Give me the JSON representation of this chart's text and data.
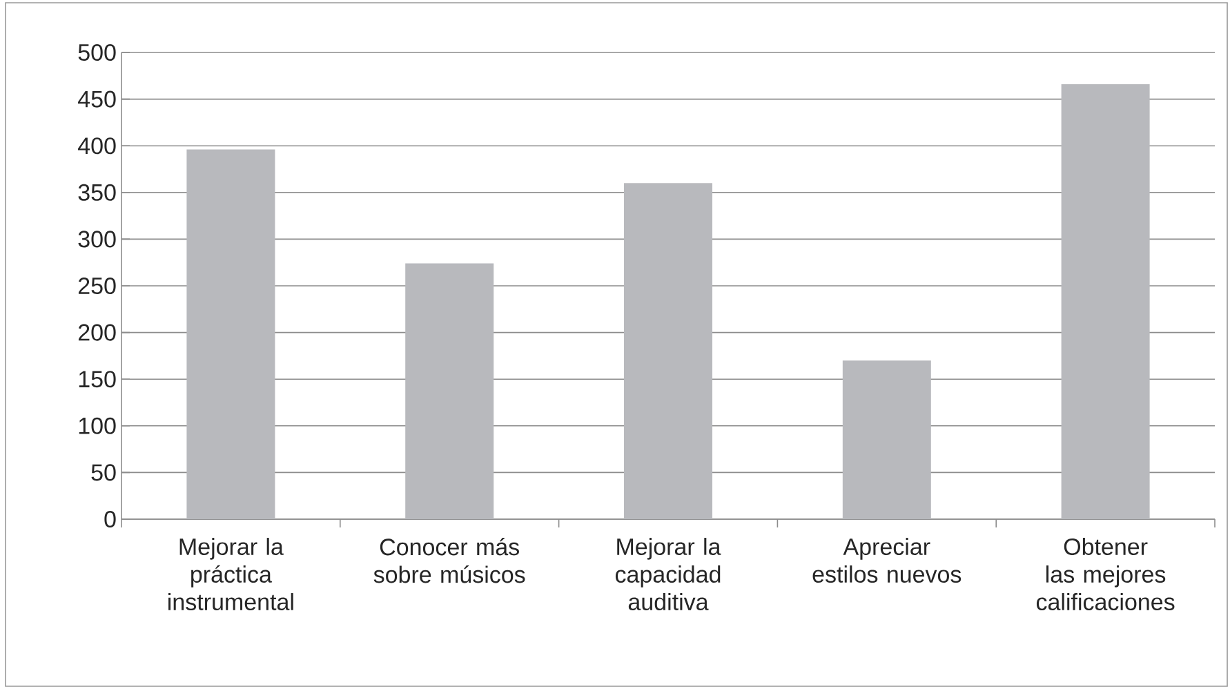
{
  "chart_data": {
    "type": "bar",
    "categories": [
      "Mejorar la práctica instrumental",
      "Conocer más sobre músicos",
      "Mejorar la capacidad auditiva",
      "Apreciar estilos nuevos",
      "Obtener las mejores calificaciones"
    ],
    "values": [
      396,
      274,
      360,
      170,
      466
    ],
    "color": "#b8b9bd",
    "ylim": [
      0,
      500
    ],
    "yticks": [
      0,
      50,
      100,
      150,
      200,
      250,
      300,
      350,
      400,
      450,
      500
    ],
    "grid": "y"
  }
}
